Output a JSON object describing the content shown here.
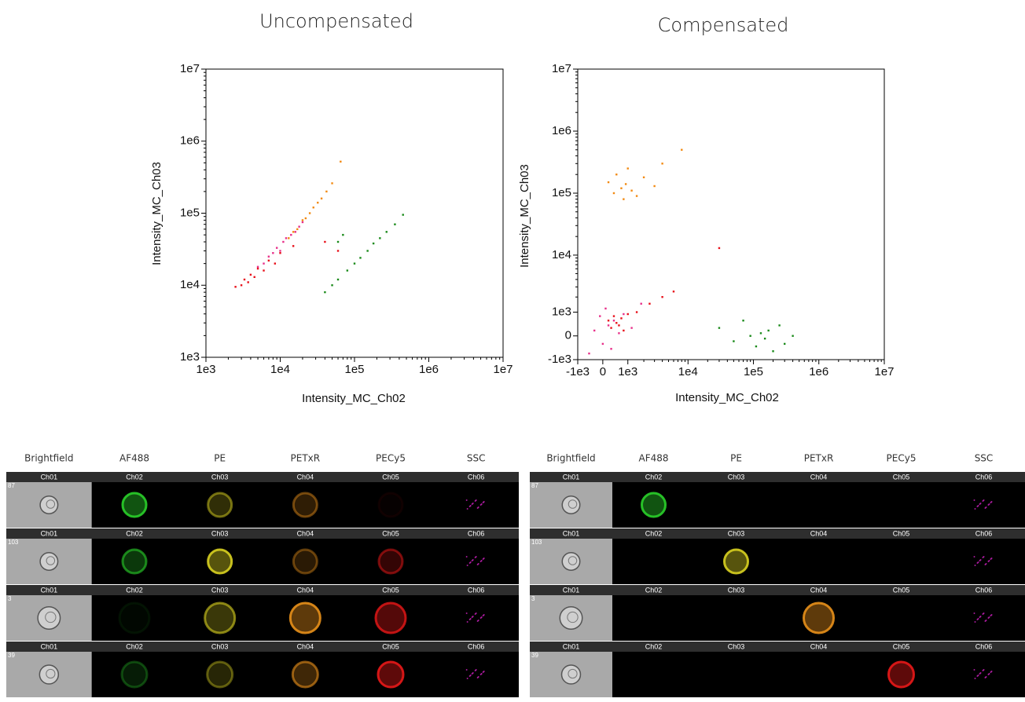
{
  "chart_data": [
    {
      "type": "scatter",
      "title": "Uncompensated",
      "x_label": "Intensity_MC_Ch02",
      "y_label": "Intensity_MC_Ch03",
      "xscale": "log",
      "yscale": "log",
      "xlim": [
        1000,
        10000000
      ],
      "ylim": [
        1000,
        10000000
      ],
      "xticks": [
        {
          "value": 1000,
          "label": "1e3"
        },
        {
          "value": 10000,
          "label": "1e4"
        },
        {
          "value": 100000,
          "label": "1e5"
        },
        {
          "value": 1000000,
          "label": "1e6"
        },
        {
          "value": 10000000,
          "label": "1e7"
        }
      ],
      "yticks": [
        {
          "value": 1000,
          "label": "1e3"
        },
        {
          "value": 10000,
          "label": "1e4"
        },
        {
          "value": 100000,
          "label": "1e5"
        },
        {
          "value": 1000000,
          "label": "1e6"
        },
        {
          "value": 10000000,
          "label": "1e7"
        }
      ],
      "series": [
        {
          "color": "#f28a12",
          "x": [
            13000,
            15000,
            17000,
            20000,
            22000,
            25000,
            28000,
            32000,
            36000,
            42000,
            50000,
            65000
          ],
          "values": [
            45000,
            55000,
            60000,
            80000,
            85000,
            100000,
            120000,
            140000,
            160000,
            200000,
            260000,
            520000
          ]
        },
        {
          "color": "#e8308a",
          "x": [
            5000,
            6000,
            7000,
            8000,
            9000,
            10000,
            11000,
            12000,
            14000,
            16000,
            18000,
            20000
          ],
          "values": [
            18000,
            20000,
            25000,
            28000,
            33000,
            30000,
            40000,
            45000,
            50000,
            55000,
            65000,
            75000
          ]
        },
        {
          "color": "#e8101a",
          "x": [
            2500,
            3000,
            3300,
            3700,
            4000,
            4500,
            5000,
            6000,
            7000,
            8500,
            10000,
            15000,
            40000,
            60000
          ],
          "values": [
            9500,
            10000,
            12000,
            11000,
            14000,
            13000,
            17000,
            16000,
            22000,
            20000,
            28000,
            35000,
            40000,
            30000
          ]
        },
        {
          "color": "#1a8a1a",
          "x": [
            40000,
            50000,
            60000,
            80000,
            100000,
            120000,
            150000,
            180000,
            220000,
            270000,
            350000,
            450000,
            70000,
            60000
          ],
          "values": [
            8000,
            10000,
            12000,
            16000,
            20000,
            24000,
            30000,
            38000,
            45000,
            55000,
            70000,
            95000,
            50000,
            40000
          ]
        }
      ]
    },
    {
      "type": "scatter",
      "title": "Compensated",
      "x_label": "Intensity_MC_Ch02",
      "y_label": "Intensity_MC_Ch03",
      "xscale": "biexponential",
      "yscale": "biexponential",
      "xlim": [
        -1000,
        10000000
      ],
      "ylim": [
        -1000,
        10000000
      ],
      "xticks": [
        {
          "value": -1000,
          "label": "-1e3"
        },
        0,
        {
          "value": 1000,
          "label": "1e3"
        },
        {
          "value": 10000,
          "label": "1e4"
        },
        {
          "value": 100000,
          "label": "1e5"
        },
        {
          "value": 1000000,
          "label": "1e6"
        },
        {
          "value": 10000000,
          "label": "1e7"
        }
      ],
      "yticks": [
        {
          "value": -1000,
          "label": "-1e3"
        },
        0,
        {
          "value": 1000,
          "label": "1e3"
        },
        {
          "value": 10000,
          "label": "1e4"
        },
        {
          "value": 100000,
          "label": "1e5"
        },
        {
          "value": 1000000,
          "label": "1e6"
        },
        {
          "value": 10000000,
          "label": "1e7"
        }
      ],
      "series": [
        {
          "color": "#f28a12",
          "x": [
            200,
            400,
            500,
            700,
            800,
            900,
            1000,
            1200,
            1500,
            2000,
            3000,
            4000,
            8000
          ],
          "values": [
            150000,
            100000,
            200000,
            120000,
            80000,
            140000,
            250000,
            110000,
            90000,
            180000,
            130000,
            300000,
            500000
          ]
        },
        {
          "color": "#e8308a",
          "x": [
            -500,
            -300,
            -100,
            0,
            100,
            200,
            300,
            400,
            600,
            800,
            1200,
            1800
          ],
          "values": [
            -700,
            200,
            800,
            -300,
            1200,
            400,
            -500,
            600,
            100,
            900,
            300,
            1500
          ]
        },
        {
          "color": "#e8101a",
          "x": [
            200,
            300,
            400,
            500,
            600,
            700,
            800,
            1000,
            1500,
            2500,
            4000,
            6000,
            30000
          ],
          "values": [
            600,
            300,
            800,
            500,
            400,
            700,
            200,
            900,
            1000,
            1500,
            2000,
            2500,
            13000
          ]
        },
        {
          "color": "#1a8a1a",
          "x": [
            30000,
            50000,
            70000,
            90000,
            110000,
            130000,
            150000,
            170000,
            200000,
            250000,
            300000,
            400000
          ],
          "values": [
            300,
            -200,
            600,
            0,
            -400,
            100,
            -100,
            200,
            -600,
            400,
            -300,
            0
          ]
        }
      ]
    }
  ],
  "galleries": [
    {
      "columns": [
        "Brightfield",
        "AF488",
        "PE",
        "PETxR",
        "PECy5",
        "SSC"
      ],
      "rows": [
        {
          "object": 87,
          "channels": [
            "Ch01",
            "Ch02",
            "Ch03",
            "Ch04",
            "Ch05",
            "Ch06"
          ]
        },
        {
          "object": 103,
          "channels": [
            "Ch01",
            "Ch02",
            "Ch03",
            "Ch04",
            "Ch05",
            "Ch06"
          ]
        },
        {
          "object": 3,
          "channels": [
            "Ch01",
            "Ch02",
            "Ch03",
            "Ch04",
            "Ch05",
            "Ch06"
          ]
        },
        {
          "object": 39,
          "channels": [
            "Ch01",
            "Ch02",
            "Ch03",
            "Ch04",
            "Ch05",
            "Ch06"
          ]
        }
      ]
    },
    {
      "columns": [
        "Brightfield",
        "AF488",
        "PE",
        "PETxR",
        "PECy5",
        "SSC"
      ],
      "rows": [
        {
          "object": 87,
          "channels": [
            "Ch01",
            "Ch02",
            "Ch03",
            "Ch04",
            "Ch05",
            "Ch06"
          ]
        },
        {
          "object": 103,
          "channels": [
            "Ch01",
            "Ch02",
            "Ch03",
            "Ch04",
            "Ch05",
            "Ch06"
          ]
        },
        {
          "object": 3,
          "channels": [
            "Ch01",
            "Ch02",
            "Ch03",
            "Ch04",
            "Ch05",
            "Ch06"
          ]
        },
        {
          "object": 39,
          "channels": [
            "Ch01",
            "Ch02",
            "Ch03",
            "Ch04",
            "Ch05",
            "Ch06"
          ]
        }
      ]
    }
  ]
}
